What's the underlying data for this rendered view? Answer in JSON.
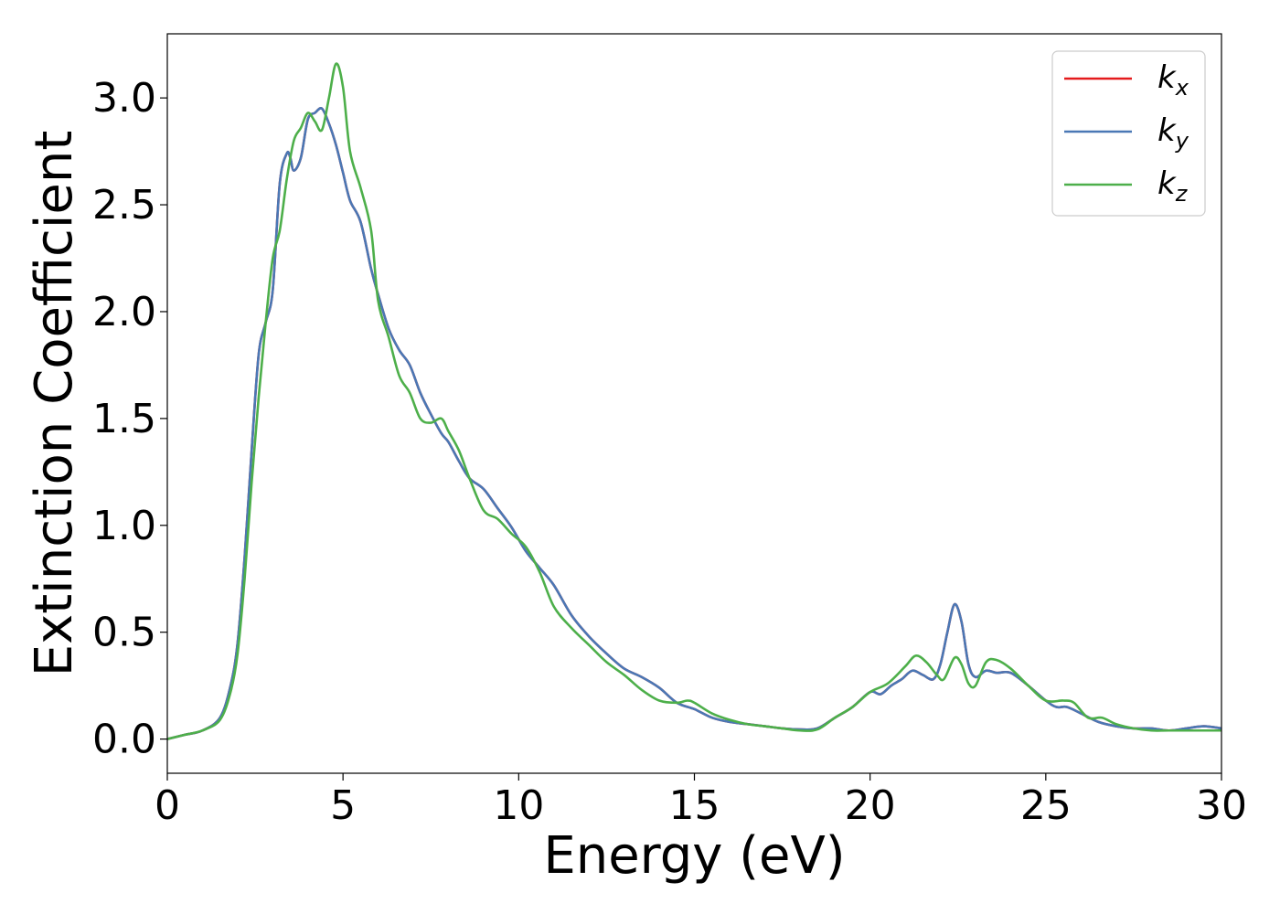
{
  "chart_data": {
    "type": "line",
    "title": "",
    "xlabel": "Energy (eV)",
    "ylabel": "Extinction Coefficient",
    "xlim": [
      0,
      30
    ],
    "ylim": [
      -0.16,
      3.3
    ],
    "xticks": [
      0,
      5,
      10,
      15,
      20,
      25,
      30
    ],
    "xtick_labels": [
      "0",
      "5",
      "10",
      "15",
      "20",
      "25",
      "30"
    ],
    "yticks": [
      0.0,
      0.5,
      1.0,
      1.5,
      2.0,
      2.5,
      3.0
    ],
    "ytick_labels": [
      "0.0",
      "0.5",
      "1.0",
      "1.5",
      "2.0",
      "2.5",
      "3.0"
    ],
    "grid": false,
    "legend": {
      "placement": "top-right"
    },
    "series": [
      {
        "name": "k_x",
        "label_main": "k",
        "label_sub": "x",
        "color": "#e41a1c",
        "x": [
          0,
          0.5,
          1,
          1.5,
          1.8,
          2,
          2.2,
          2.4,
          2.6,
          2.8,
          3,
          3.2,
          3.4,
          3.5,
          3.6,
          3.8,
          4,
          4.2,
          4.4,
          4.6,
          4.8,
          5,
          5.2,
          5.5,
          5.8,
          6,
          6.3,
          6.6,
          6.9,
          7.2,
          7.5,
          7.8,
          8,
          8.3,
          8.6,
          9,
          9.4,
          9.8,
          10.2,
          10.6,
          11,
          11.5,
          12,
          12.5,
          13,
          13.5,
          14,
          14.5,
          15,
          15.5,
          16,
          16.5,
          17,
          17.5,
          18,
          18.5,
          19,
          19.5,
          20,
          20.3,
          20.6,
          20.9,
          21.2,
          21.5,
          21.8,
          22,
          22.2,
          22.4,
          22.6,
          22.8,
          23,
          23.3,
          23.6,
          24,
          24.5,
          25,
          25.3,
          25.6,
          26,
          26.5,
          27,
          27.5,
          28,
          28.5,
          29,
          29.5,
          30
        ],
        "y": [
          0,
          0.02,
          0.04,
          0.1,
          0.25,
          0.45,
          0.85,
          1.35,
          1.8,
          1.95,
          2.1,
          2.6,
          2.74,
          2.72,
          2.66,
          2.72,
          2.9,
          2.93,
          2.95,
          2.88,
          2.78,
          2.65,
          2.52,
          2.42,
          2.2,
          2.08,
          1.92,
          1.82,
          1.75,
          1.62,
          1.52,
          1.43,
          1.39,
          1.3,
          1.22,
          1.17,
          1.08,
          0.99,
          0.88,
          0.8,
          0.72,
          0.58,
          0.48,
          0.4,
          0.33,
          0.29,
          0.24,
          0.17,
          0.14,
          0.1,
          0.08,
          0.07,
          0.06,
          0.05,
          0.045,
          0.05,
          0.1,
          0.15,
          0.22,
          0.21,
          0.25,
          0.28,
          0.32,
          0.3,
          0.28,
          0.35,
          0.5,
          0.63,
          0.55,
          0.35,
          0.29,
          0.32,
          0.31,
          0.31,
          0.25,
          0.18,
          0.15,
          0.15,
          0.12,
          0.08,
          0.06,
          0.05,
          0.05,
          0.04,
          0.05,
          0.06,
          0.05
        ]
      },
      {
        "name": "k_y",
        "label_main": "k",
        "label_sub": "y",
        "color": "#4a78b5",
        "x": [
          0,
          0.5,
          1,
          1.5,
          1.8,
          2,
          2.2,
          2.4,
          2.6,
          2.8,
          3,
          3.2,
          3.4,
          3.5,
          3.6,
          3.8,
          4,
          4.2,
          4.4,
          4.6,
          4.8,
          5,
          5.2,
          5.5,
          5.8,
          6,
          6.3,
          6.6,
          6.9,
          7.2,
          7.5,
          7.8,
          8,
          8.3,
          8.6,
          9,
          9.4,
          9.8,
          10.2,
          10.6,
          11,
          11.5,
          12,
          12.5,
          13,
          13.5,
          14,
          14.5,
          15,
          15.5,
          16,
          16.5,
          17,
          17.5,
          18,
          18.5,
          19,
          19.5,
          20,
          20.3,
          20.6,
          20.9,
          21.2,
          21.5,
          21.8,
          22,
          22.2,
          22.4,
          22.6,
          22.8,
          23,
          23.3,
          23.6,
          24,
          24.5,
          25,
          25.3,
          25.6,
          26,
          26.5,
          27,
          27.5,
          28,
          28.5,
          29,
          29.5,
          30
        ],
        "y": [
          0,
          0.02,
          0.04,
          0.1,
          0.25,
          0.45,
          0.85,
          1.35,
          1.8,
          1.95,
          2.1,
          2.6,
          2.74,
          2.72,
          2.66,
          2.72,
          2.9,
          2.93,
          2.95,
          2.88,
          2.78,
          2.65,
          2.52,
          2.42,
          2.2,
          2.08,
          1.92,
          1.82,
          1.75,
          1.62,
          1.52,
          1.43,
          1.39,
          1.3,
          1.22,
          1.17,
          1.08,
          0.99,
          0.88,
          0.8,
          0.72,
          0.58,
          0.48,
          0.4,
          0.33,
          0.29,
          0.24,
          0.17,
          0.14,
          0.1,
          0.08,
          0.07,
          0.06,
          0.05,
          0.045,
          0.05,
          0.1,
          0.15,
          0.22,
          0.21,
          0.25,
          0.28,
          0.32,
          0.3,
          0.28,
          0.35,
          0.5,
          0.63,
          0.55,
          0.35,
          0.29,
          0.32,
          0.31,
          0.31,
          0.25,
          0.18,
          0.15,
          0.15,
          0.12,
          0.08,
          0.06,
          0.05,
          0.05,
          0.04,
          0.05,
          0.06,
          0.05
        ]
      },
      {
        "name": "k_z",
        "label_main": "k",
        "label_sub": "z",
        "color": "#4daf4a",
        "x": [
          0,
          0.5,
          1,
          1.5,
          1.8,
          2,
          2.2,
          2.4,
          2.6,
          2.8,
          3,
          3.2,
          3.4,
          3.6,
          3.8,
          4,
          4.2,
          4.4,
          4.6,
          4.8,
          5,
          5.2,
          5.5,
          5.8,
          6,
          6.3,
          6.6,
          6.9,
          7.2,
          7.5,
          7.8,
          8,
          8.3,
          8.6,
          9,
          9.4,
          9.8,
          10.2,
          10.6,
          11,
          11.5,
          12,
          12.5,
          13,
          13.5,
          14,
          14.5,
          14.8,
          15,
          15.5,
          16,
          16.5,
          17,
          17.5,
          18,
          18.5,
          19,
          19.5,
          20,
          20.5,
          21,
          21.3,
          21.6,
          21.9,
          22.1,
          22.4,
          22.6,
          22.8,
          23,
          23.3,
          23.6,
          24,
          24.5,
          25,
          25.5,
          25.8,
          26.2,
          26.6,
          27,
          27.5,
          28,
          28.5,
          29,
          29.5,
          30
        ],
        "y": [
          0,
          0.02,
          0.04,
          0.09,
          0.22,
          0.4,
          0.75,
          1.2,
          1.6,
          1.95,
          2.25,
          2.38,
          2.62,
          2.8,
          2.86,
          2.93,
          2.89,
          2.85,
          3.0,
          3.16,
          3.05,
          2.75,
          2.58,
          2.38,
          2.05,
          1.88,
          1.7,
          1.62,
          1.5,
          1.48,
          1.5,
          1.44,
          1.35,
          1.22,
          1.07,
          1.03,
          0.96,
          0.9,
          0.78,
          0.62,
          0.52,
          0.44,
          0.36,
          0.3,
          0.23,
          0.18,
          0.17,
          0.18,
          0.17,
          0.12,
          0.09,
          0.07,
          0.06,
          0.05,
          0.04,
          0.045,
          0.1,
          0.15,
          0.22,
          0.26,
          0.34,
          0.39,
          0.36,
          0.3,
          0.28,
          0.38,
          0.35,
          0.26,
          0.25,
          0.36,
          0.37,
          0.33,
          0.25,
          0.18,
          0.18,
          0.17,
          0.1,
          0.1,
          0.07,
          0.05,
          0.04,
          0.04,
          0.04,
          0.04,
          0.04
        ]
      }
    ]
  }
}
